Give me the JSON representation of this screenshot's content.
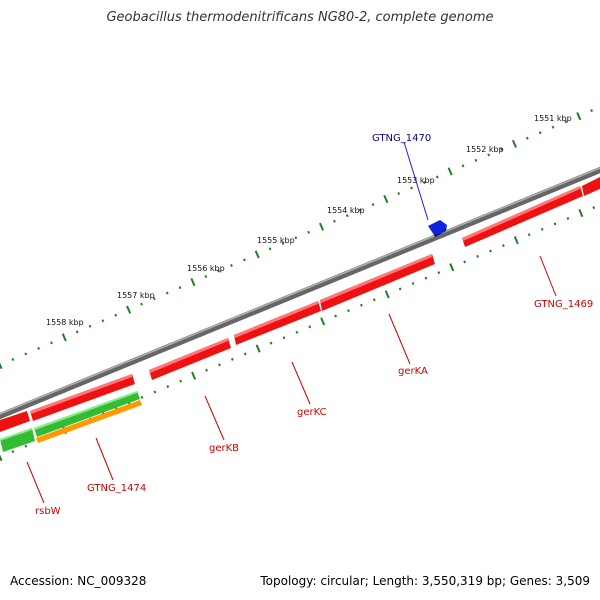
{
  "title": "Geobacillus thermodenitrificans NG80-2, complete genome",
  "footer": {
    "accession": "Accession: NC_009328",
    "summary": "Topology: circular; Length: 3,550,319 bp; Genes: 3,509"
  },
  "colors": {
    "backbone": "#808080",
    "gene_red": "#ee1111",
    "gene_green": "#33bb33",
    "gene_orange": "#ff9900",
    "gene_blue": "#1122dd",
    "tick": "#2a7a2a",
    "label_red": "#cc0000",
    "label_blue": "#000099"
  },
  "ticks": [
    {
      "label": "1551 kbp"
    },
    {
      "label": "1552 kbp"
    },
    {
      "label": "1553 kbp"
    },
    {
      "label": "1554 kbp"
    },
    {
      "label": "1555 kbp"
    },
    {
      "label": "1556 kbp"
    },
    {
      "label": "1557 kbp"
    },
    {
      "label": "1558 kbp"
    }
  ],
  "genes": [
    {
      "label": "GTNG_1470"
    },
    {
      "label": "GTNG_1469"
    },
    {
      "label": "gerKA"
    },
    {
      "label": "gerKC"
    },
    {
      "label": "gerKB"
    },
    {
      "label": "GTNG_1474"
    },
    {
      "label": "rsbW"
    }
  ]
}
